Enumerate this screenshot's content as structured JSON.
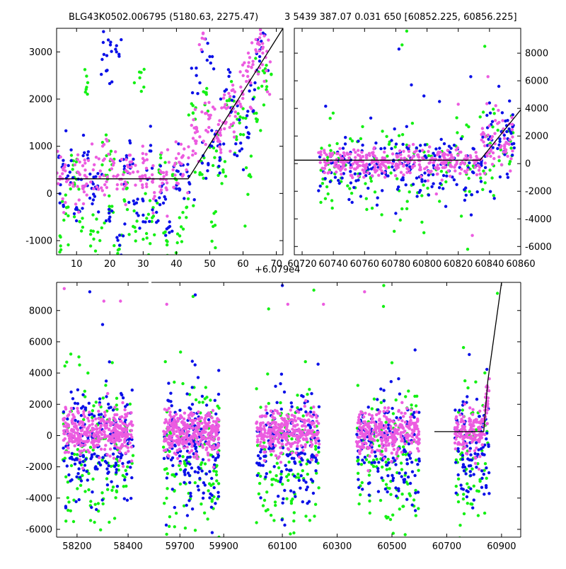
{
  "figure": {
    "title_left": "BLG43K0502.006795 (5180.63, 2275.47)",
    "title_right": "3 5439 387.07 0.031 650 [60852.225, 60856.225]",
    "x_offset_label": "+6.079e4"
  },
  "colors": {
    "blue": "#0a10e8",
    "green": "#14f014",
    "magenta": "#ec5ce0",
    "model": "#000000"
  },
  "chart_data": [
    {
      "type": "scatter",
      "panel": "top-left",
      "xlim": [
        4,
        72
      ],
      "ylim": [
        -1300,
        3500
      ],
      "xticks": [
        "10",
        "20",
        "30",
        "40",
        "50",
        "60",
        "70"
      ],
      "xtick_values": [
        10,
        20,
        30,
        40,
        50,
        60,
        70
      ],
      "yticks": [
        "-1000",
        "0",
        "1000",
        "2000",
        "3000"
      ],
      "ytick_values": [
        -1000,
        0,
        1000,
        2000,
        3000
      ],
      "ytick_side": "left",
      "x_offset": "+6.079e4",
      "model_line": [
        [
          4,
          310
        ],
        [
          43.5,
          310
        ],
        [
          72,
          3500
        ]
      ],
      "series": [
        {
          "color": "magenta",
          "points": [
            [
              5,
              300
            ],
            [
              7,
              250
            ],
            [
              9,
              150
            ],
            [
              11,
              400
            ],
            [
              13,
              200
            ],
            [
              15,
              500
            ],
            [
              17,
              350
            ],
            [
              19,
              250
            ],
            [
              21,
              600
            ],
            [
              23,
              300
            ],
            [
              25,
              200
            ],
            [
              27,
              450
            ],
            [
              29,
              350
            ],
            [
              31,
              200
            ],
            [
              33,
              300
            ],
            [
              35,
              150
            ],
            [
              37,
              400
            ],
            [
              39,
              500
            ],
            [
              41,
              650
            ],
            [
              43,
              500
            ],
            [
              45,
              900
            ],
            [
              47,
              1200
            ],
            [
              48,
              3400
            ],
            [
              50,
              1600
            ],
            [
              52,
              1300
            ],
            [
              54,
              1500
            ],
            [
              55,
              1800
            ],
            [
              56,
              1400
            ],
            [
              57,
              2200
            ],
            [
              58,
              1900
            ],
            [
              60,
              2100
            ],
            [
              61,
              2600
            ],
            [
              62,
              2400
            ],
            [
              63,
              2800
            ],
            [
              64,
              3000
            ],
            [
              65,
              3300
            ],
            [
              66,
              3100
            ],
            [
              67,
              2600
            ],
            [
              6,
              500
            ],
            [
              12,
              100
            ],
            [
              18,
              700
            ],
            [
              24,
              400
            ],
            [
              30,
              650
            ],
            [
              36,
              300
            ],
            [
              42,
              800
            ],
            [
              46,
              1400
            ],
            [
              49,
              1700
            ],
            [
              53,
              1100
            ]
          ]
        },
        {
          "color": "blue",
          "points": [
            [
              5,
              -200
            ],
            [
              6,
              700
            ],
            [
              8,
              450
            ],
            [
              10,
              -300
            ],
            [
              12,
              800
            ],
            [
              14,
              -100
            ],
            [
              16,
              100
            ],
            [
              18,
              3200
            ],
            [
              19,
              2600
            ],
            [
              20,
              -500
            ],
            [
              22,
              3000
            ],
            [
              24,
              -900
            ],
            [
              26,
              600
            ],
            [
              28,
              -200
            ],
            [
              30,
              -600
            ],
            [
              32,
              900
            ],
            [
              34,
              -400
            ],
            [
              36,
              200
            ],
            [
              38,
              -700
            ],
            [
              40,
              100
            ],
            [
              42,
              600
            ],
            [
              44,
              200
            ],
            [
              46,
              2500
            ],
            [
              48,
              800
            ],
            [
              50,
              2900
            ],
            [
              51,
              1100
            ],
            [
              53,
              700
            ],
            [
              55,
              2200
            ],
            [
              57,
              1800
            ],
            [
              59,
              900
            ],
            [
              61,
              1400
            ],
            [
              63,
              2000
            ],
            [
              65,
              2900
            ],
            [
              66,
              3400
            ],
            [
              15,
              200
            ],
            [
              25,
              800
            ]
          ]
        },
        {
          "color": "green",
          "points": [
            [
              5,
              -900
            ],
            [
              7,
              -300
            ],
            [
              9,
              600
            ],
            [
              11,
              -600
            ],
            [
              13,
              2250
            ],
            [
              15,
              -800
            ],
            [
              17,
              -1000
            ],
            [
              19,
              800
            ],
            [
              21,
              -400
            ],
            [
              23,
              -1100
            ],
            [
              25,
              100
            ],
            [
              27,
              -700
            ],
            [
              29,
              2450
            ],
            [
              31,
              -850
            ],
            [
              33,
              -300
            ],
            [
              35,
              600
            ],
            [
              37,
              -1000
            ],
            [
              39,
              400
            ],
            [
              41,
              -900
            ],
            [
              43,
              -300
            ],
            [
              45,
              1700
            ],
            [
              47,
              400
            ],
            [
              49,
              2100
            ],
            [
              51,
              -700
            ],
            [
              52,
              900
            ],
            [
              54,
              500
            ],
            [
              56,
              2000
            ],
            [
              58,
              1200
            ],
            [
              60,
              1600
            ],
            [
              62,
              400
            ],
            [
              64,
              1700
            ],
            [
              66,
              2600
            ],
            [
              67,
              2200
            ],
            [
              10,
              300
            ],
            [
              20,
              500
            ]
          ]
        }
      ]
    },
    {
      "type": "scatter",
      "panel": "top-right",
      "xlim": [
        60715,
        60860
      ],
      "ylim": [
        -6600,
        9800
      ],
      "xticks": [
        "60720",
        "60740",
        "60760",
        "60780",
        "60800",
        "60820",
        "60840",
        "60860"
      ],
      "xtick_values": [
        60720,
        60740,
        60760,
        60780,
        60800,
        60820,
        60840,
        60860
      ],
      "yticks": [
        "-6000",
        "-4000",
        "-2000",
        "0",
        "2000",
        "4000",
        "6000",
        "8000"
      ],
      "ytick_values": [
        -6000,
        -4000,
        -2000,
        0,
        2000,
        4000,
        6000,
        8000
      ],
      "ytick_side": "right",
      "model_line": [
        [
          60715,
          250
        ],
        [
          60834,
          250
        ],
        [
          60860,
          3900
        ]
      ],
      "clusters": [
        {
          "x0": 60730,
          "x1": 60834,
          "center": 150,
          "spread": 500,
          "count": 320,
          "color": "magenta"
        },
        {
          "x0": 60730,
          "x1": 60834,
          "center": -300,
          "spread": 1300,
          "count": 180,
          "color": "blue"
        },
        {
          "x0": 60730,
          "x1": 60834,
          "center": -500,
          "spread": 1700,
          "count": 120,
          "color": "green"
        },
        {
          "x0": 60834,
          "x1": 60856,
          "center": 1200,
          "spread": 900,
          "count": 60,
          "color": "magenta"
        },
        {
          "x0": 60834,
          "x1": 60856,
          "center": 1000,
          "spread": 1300,
          "count": 50,
          "color": "blue"
        },
        {
          "x0": 60834,
          "x1": 60856,
          "center": 600,
          "spread": 1600,
          "count": 35,
          "color": "green"
        }
      ],
      "outliers": [
        {
          "color": "green",
          "points": [
            [
              60787,
              9600
            ],
            [
              60784,
              8600
            ],
            [
              60826,
              -6200
            ],
            [
              60837,
              8500
            ],
            [
              60771,
              -3700
            ],
            [
              60779,
              -4900
            ],
            [
              60798,
              -5000
            ],
            [
              60822,
              -3800
            ],
            [
              60732,
              -2800
            ],
            [
              60745,
              -1300
            ]
          ]
        },
        {
          "color": "blue",
          "points": [
            [
              60782,
              8300
            ],
            [
              60790,
              5700
            ],
            [
              60798,
              4900
            ],
            [
              60808,
              4500
            ],
            [
              60780,
              -3600
            ],
            [
              60752,
              -2800
            ],
            [
              60768,
              -3000
            ],
            [
              60812,
              -3100
            ],
            [
              60828,
              6300
            ],
            [
              60840,
              4400
            ],
            [
              60846,
              5600
            ],
            [
              60764,
              3300
            ]
          ]
        },
        {
          "color": "magenta",
          "points": [
            [
              60839,
              6300
            ],
            [
              60820,
              4300
            ],
            [
              60806,
              -2200
            ],
            [
              60829,
              -5200
            ],
            [
              60844,
              4200
            ]
          ]
        }
      ]
    },
    {
      "type": "scatter",
      "panel": "bottom",
      "ylim": [
        -6500,
        9800
      ],
      "yticks": [
        "-6000",
        "-4000",
        "-2000",
        "0",
        "2000",
        "4000",
        "6000",
        "8000"
      ],
      "ytick_values": [
        -6000,
        -4000,
        -2000,
        0,
        2000,
        4000,
        6000,
        8000
      ],
      "ytick_side": "left",
      "broken_axis_segments": [
        {
          "xlim": [
            58120,
            58480
          ],
          "xticks": [
            "58200",
            "58400"
          ],
          "xtick_values": [
            58200,
            58400
          ]
        },
        {
          "xlim": [
            59570,
            59980
          ],
          "xticks": [
            "59700",
            "59900"
          ],
          "xtick_values": [
            59700,
            59900
          ]
        },
        {
          "xlim": [
            59950,
            60970
          ],
          "xticks": [
            "60100",
            "60300",
            "60500",
            "60700",
            "60900"
          ],
          "xtick_values": [
            60100,
            60300,
            60500,
            60700,
            60900
          ]
        }
      ],
      "seasons": [
        {
          "segment": 0,
          "x0": 58145,
          "x1": 58420
        },
        {
          "segment": 1,
          "x0": 59625,
          "x1": 59880
        },
        {
          "segment": 2,
          "x0": 60005,
          "x1": 60235
        },
        {
          "segment": 2,
          "x0": 60370,
          "x1": 60600
        },
        {
          "segment": 2,
          "x0": 60730,
          "x1": 60856
        }
      ],
      "model_line_segment": 2,
      "model_line": [
        [
          60655,
          250
        ],
        [
          60835,
          250
        ],
        [
          60850,
          3500
        ],
        [
          60900,
          9800
        ]
      ],
      "outliers": [
        {
          "color": "magenta",
          "points": [
            [
              58150,
              9400
            ],
            [
              58305,
              8600
            ],
            [
              58370,
              8600
            ],
            [
              59640,
              8400
            ],
            [
              60120,
              8400
            ],
            [
              60250,
              8400
            ],
            [
              60400,
              9200
            ]
          ]
        },
        {
          "color": "blue",
          "points": [
            [
              58250,
              9200
            ],
            [
              58300,
              7100
            ],
            [
              59770,
              9000
            ],
            [
              60100,
              9600
            ]
          ]
        },
        {
          "color": "green",
          "points": [
            [
              59760,
              8900
            ],
            [
              60050,
              8100
            ],
            [
              60215,
              9300
            ],
            [
              60470,
              9600
            ],
            [
              60885,
              9100
            ]
          ]
        }
      ]
    }
  ]
}
